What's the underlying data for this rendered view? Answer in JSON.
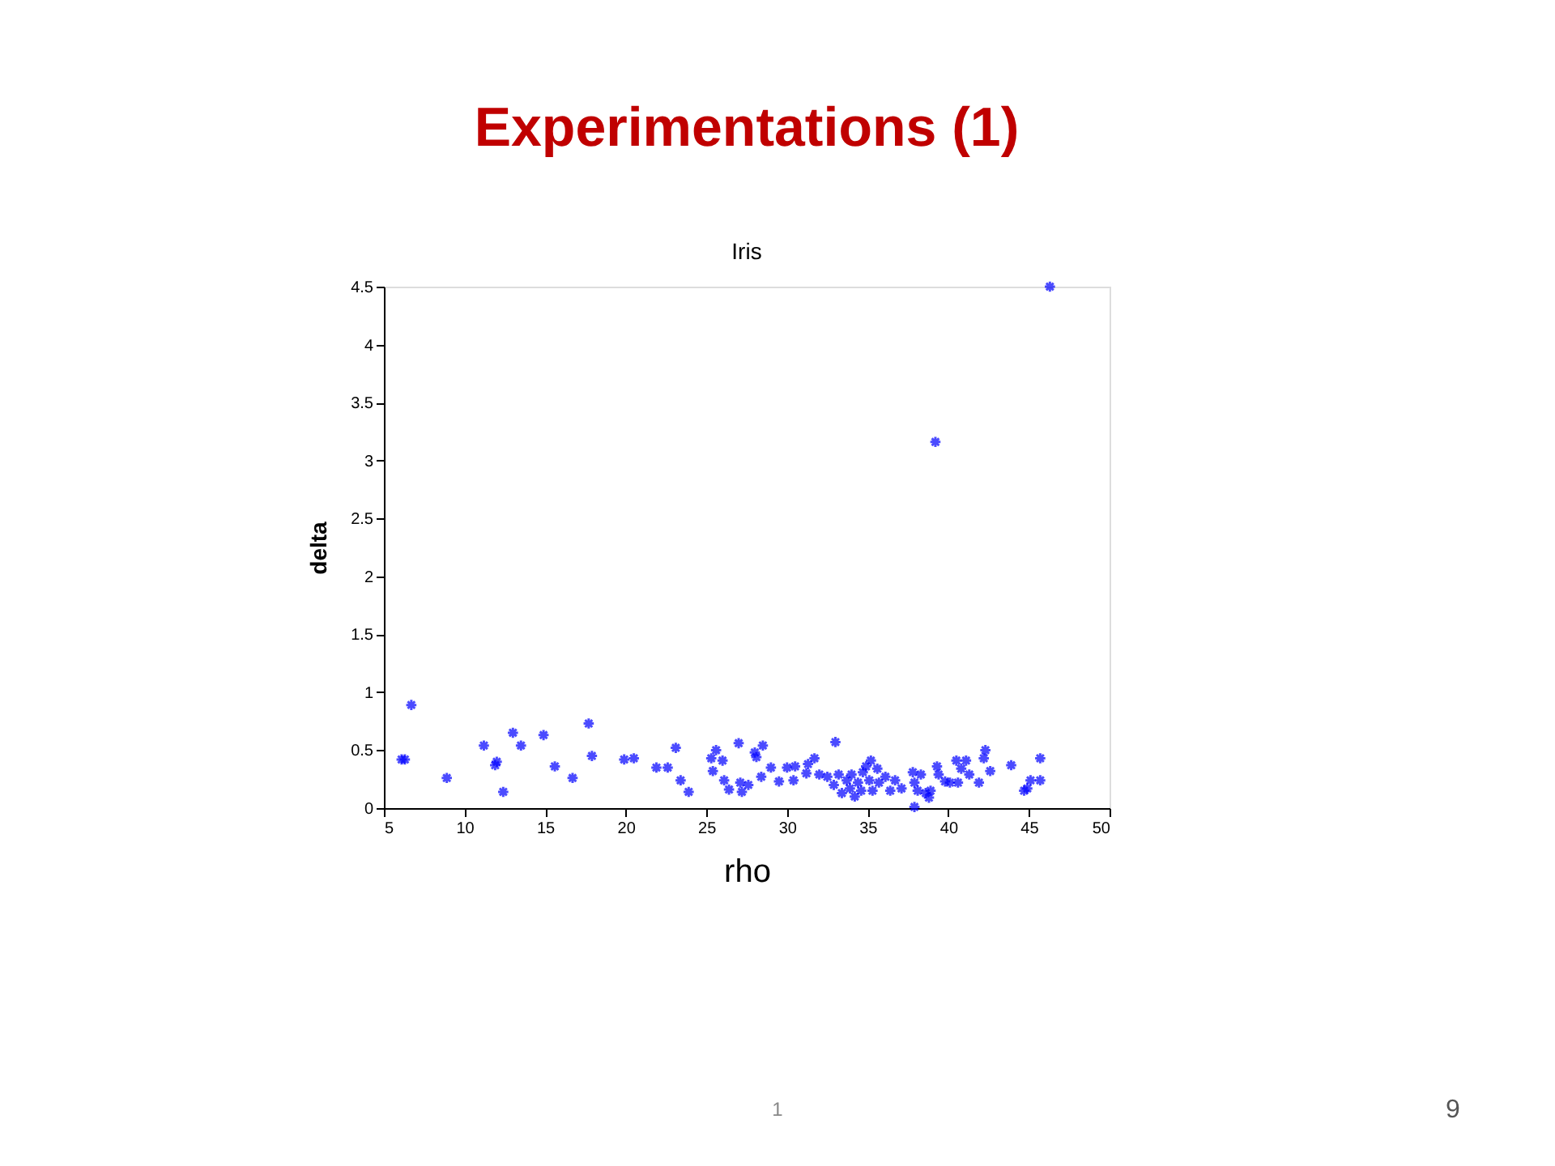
{
  "chart_data": {
    "type": "scatter",
    "title": "Experimentations (1)",
    "subtitle": "Iris",
    "xlabel": "rho",
    "ylabel": "delta",
    "annotations": [
      "1",
      "9"
    ],
    "xlim": [
      5,
      50
    ],
    "xticks": [
      5,
      10,
      15,
      20,
      25,
      30,
      35,
      40,
      45,
      50
    ],
    "ylim": [
      0,
      4.5
    ],
    "yticks": [
      0,
      0.5,
      1,
      1.5,
      2,
      2.5,
      3,
      3.5,
      4,
      4.5
    ],
    "grid": false,
    "marker": "cross",
    "series": [
      {
        "color": "#0000ff",
        "x": [
          6.1,
          6.3,
          6.7,
          8.9,
          11.2,
          11.9,
          12.0,
          12.4,
          13.0,
          13.5,
          14.9,
          15.6,
          16.7,
          17.7,
          17.9,
          19.9,
          20.5,
          21.9,
          22.6,
          23.1,
          23.4,
          23.9,
          25.3,
          25.4,
          25.6,
          26.0,
          26.1,
          26.4,
          27.0,
          27.1,
          27.2,
          27.6,
          28.0,
          28.1,
          28.5,
          28.4,
          29.0,
          29.5,
          30.0,
          30.4,
          30.5,
          31.2,
          31.3,
          31.7,
          32.0,
          32.5,
          33.0,
          32.9,
          33.2,
          33.4,
          33.7,
          33.9,
          34.0,
          34.2,
          34.4,
          34.6,
          34.7,
          34.9,
          35.1,
          35.2,
          35.3,
          35.6,
          35.7,
          36.1,
          36.4,
          36.7,
          37.1,
          37.8,
          37.9,
          37.9,
          38.1,
          38.3,
          38.6,
          38.8,
          38.9,
          39.3,
          39.4,
          39.8,
          40.1,
          40.5,
          40.6,
          40.8,
          41.1,
          41.3,
          41.9,
          42.2,
          42.3,
          42.6,
          43.9,
          44.7,
          44.9,
          45.1,
          45.7,
          45.7,
          39.2,
          46.3
        ],
        "values": [
          0.42,
          0.42,
          0.89,
          0.26,
          0.54,
          0.37,
          0.4,
          0.14,
          0.65,
          0.54,
          0.63,
          0.36,
          0.26,
          0.73,
          0.45,
          0.42,
          0.43,
          0.35,
          0.35,
          0.52,
          0.24,
          0.14,
          0.43,
          0.32,
          0.5,
          0.41,
          0.24,
          0.16,
          0.56,
          0.22,
          0.14,
          0.2,
          0.48,
          0.44,
          0.54,
          0.27,
          0.35,
          0.23,
          0.35,
          0.24,
          0.36,
          0.3,
          0.38,
          0.43,
          0.29,
          0.27,
          0.57,
          0.2,
          0.29,
          0.13,
          0.24,
          0.17,
          0.29,
          0.1,
          0.22,
          0.15,
          0.31,
          0.36,
          0.24,
          0.41,
          0.15,
          0.34,
          0.22,
          0.27,
          0.15,
          0.24,
          0.17,
          0.31,
          0.22,
          0.01,
          0.15,
          0.29,
          0.13,
          0.09,
          0.15,
          0.36,
          0.29,
          0.23,
          0.22,
          0.41,
          0.22,
          0.34,
          0.41,
          0.29,
          0.22,
          0.43,
          0.5,
          0.32,
          0.37,
          0.15,
          0.17,
          0.24,
          0.43,
          0.24,
          3.16,
          4.5
        ]
      }
    ]
  }
}
